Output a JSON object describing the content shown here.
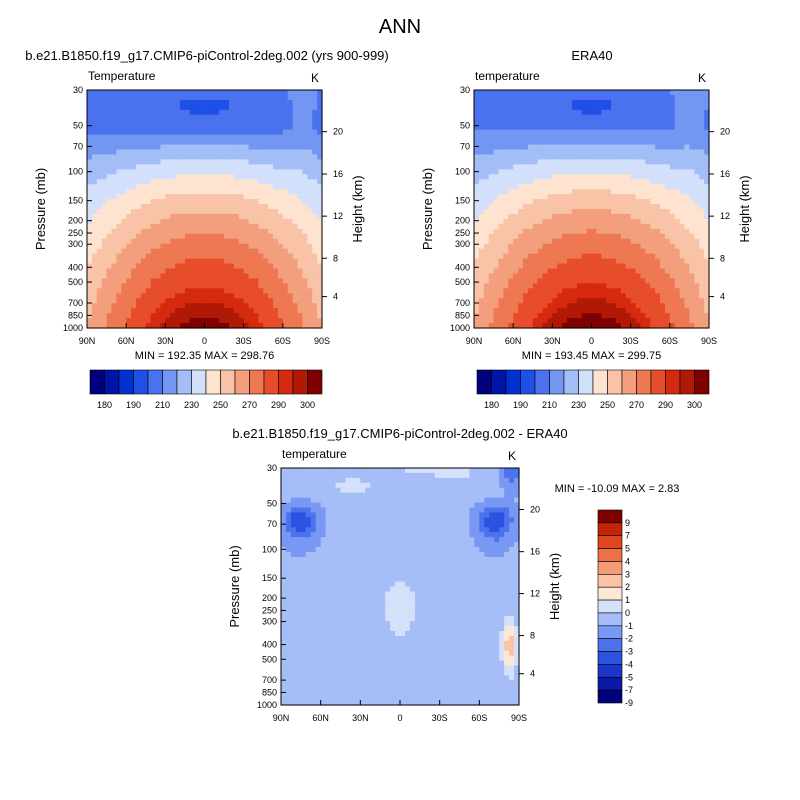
{
  "figure": {
    "title": "ANN",
    "colors": {
      "abs_scale": [
        "#00007f",
        "#0015a8",
        "#0030d0",
        "#1f4fe6",
        "#4a72ef",
        "#7297f2",
        "#a3bdf6",
        "#d2e0fb",
        "#fde3d0",
        "#f9c3a7",
        "#f39e7c",
        "#ee7852",
        "#e74d2a",
        "#d52a10",
        "#b01905",
        "#7f0000"
      ],
      "diff_scale": [
        "#00007f",
        "#0a1aa6",
        "#1b37c9",
        "#2c52e2",
        "#4c72ee",
        "#7998f4",
        "#a6bdf7",
        "#d4e1fb",
        "#fde8d6",
        "#fbc4a4",
        "#f69c74",
        "#ee7047",
        "#e0461f",
        "#c22507",
        "#7f0000"
      ]
    }
  },
  "chart_data": [
    {
      "type": "heatmap",
      "title": "b.e21.B1850.f19_g17.CMIP6-piControl-2deg.002 (yrs 900-999)",
      "left_label": "Temperature",
      "right_label": "K",
      "xlabel": "",
      "ylabel": "Pressure (mb)",
      "ylabel_right": "Height (km)",
      "x_ticks": [
        "90N",
        "60N",
        "30N",
        "0",
        "30S",
        "60S",
        "90S"
      ],
      "y_ticks": [
        "30",
        "50",
        "70",
        "100",
        "150",
        "200",
        "250",
        "300",
        "400",
        "500",
        "700",
        "850",
        "1000"
      ],
      "height_ticks": [
        "20",
        "16",
        "12",
        "8",
        "4"
      ],
      "stats": "MIN = 192.35   MAX = 298.76",
      "colorbar_labels": [
        "180",
        "190",
        "210",
        "230",
        "250",
        "270",
        "290",
        "300"
      ],
      "min": 192.35,
      "max": 298.76
    },
    {
      "type": "heatmap",
      "title": "ERA40",
      "left_label": "temperature",
      "right_label": "K",
      "xlabel": "",
      "ylabel": "Pressure (mb)",
      "ylabel_right": "Height (km)",
      "x_ticks": [
        "90N",
        "60N",
        "30N",
        "0",
        "30S",
        "60S",
        "90S"
      ],
      "y_ticks": [
        "30",
        "50",
        "70",
        "100",
        "150",
        "200",
        "250",
        "300",
        "400",
        "500",
        "700",
        "850",
        "1000"
      ],
      "height_ticks": [
        "20",
        "16",
        "12",
        "8",
        "4"
      ],
      "stats": "MIN = 193.45   MAX = 299.75",
      "colorbar_labels": [
        "180",
        "190",
        "210",
        "230",
        "250",
        "270",
        "290",
        "300"
      ],
      "min": 193.45,
      "max": 299.75
    },
    {
      "type": "heatmap",
      "title": "b.e21.B1850.f19_g17.CMIP6-piControl-2deg.002 - ERA40",
      "left_label": "temperature",
      "right_label": "K",
      "xlabel": "",
      "ylabel": "Pressure (mb)",
      "ylabel_right": "Height (km)",
      "x_ticks": [
        "90N",
        "60N",
        "30N",
        "0",
        "30S",
        "60S",
        "90S"
      ],
      "y_ticks": [
        "30",
        "50",
        "70",
        "100",
        "150",
        "200",
        "250",
        "300",
        "400",
        "500",
        "700",
        "850",
        "1000"
      ],
      "height_ticks": [
        "20",
        "16",
        "12",
        "8",
        "4"
      ],
      "stats": "MIN = -10.09   MAX =   2.83",
      "colorbar_labels": [
        "9",
        "7",
        "5",
        "4",
        "3",
        "2",
        "1",
        "0",
        "-1",
        "-2",
        "-3",
        "-4",
        "-5",
        "-7",
        "-9"
      ],
      "min": -10.09,
      "max": 2.83
    }
  ]
}
